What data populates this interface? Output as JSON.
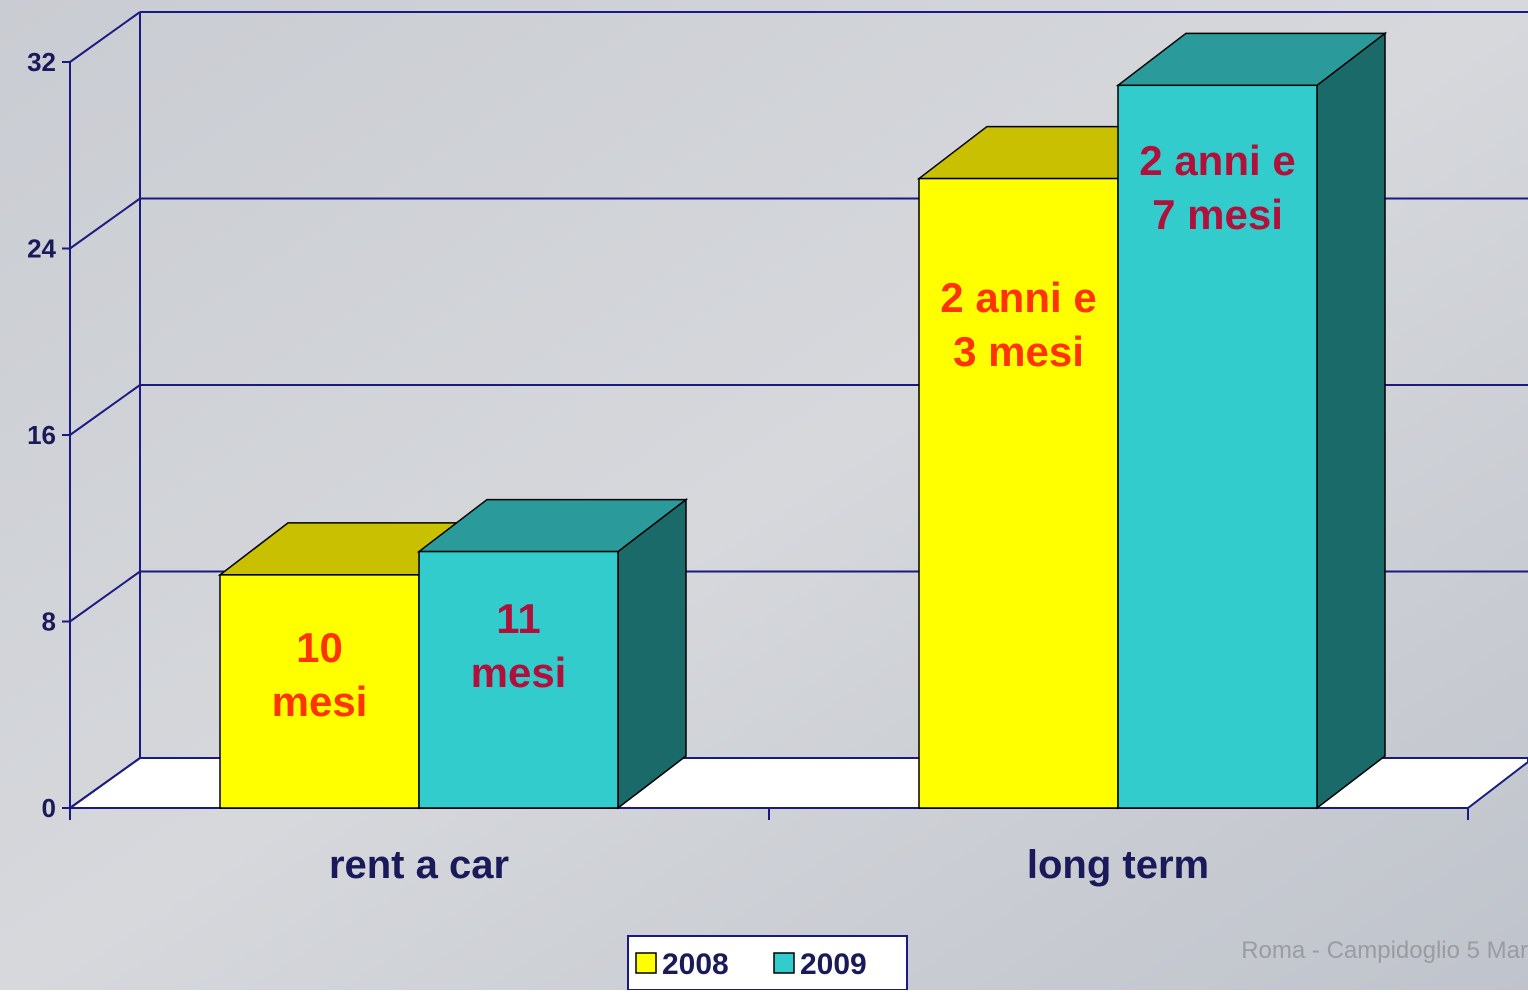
{
  "chart_data": {
    "type": "bar3d",
    "categories": [
      "rent a car",
      "long term"
    ],
    "series": [
      {
        "name": "2008",
        "color": "#ffff00",
        "top_color": "#c8c000",
        "side_color": "#8a8400",
        "label_color": "#ff3300",
        "values": [
          10,
          27
        ],
        "value_labels": [
          "10\nmesi",
          "2 anni e\n3 mesi"
        ]
      },
      {
        "name": "2009",
        "color": "#33cccc",
        "top_color": "#2a9a9a",
        "side_color": "#1a6a6a",
        "label_color": "#b0103a",
        "values": [
          11,
          31
        ],
        "value_labels": [
          "11\nmesi",
          "2 anni e\n7 mesi"
        ]
      }
    ],
    "ylim": [
      0,
      32
    ],
    "yticks": [
      0,
      8,
      16,
      24,
      32
    ],
    "grid": true,
    "legend": "bottom"
  },
  "background_text": "Roma - Campidoglio 5 Mar"
}
